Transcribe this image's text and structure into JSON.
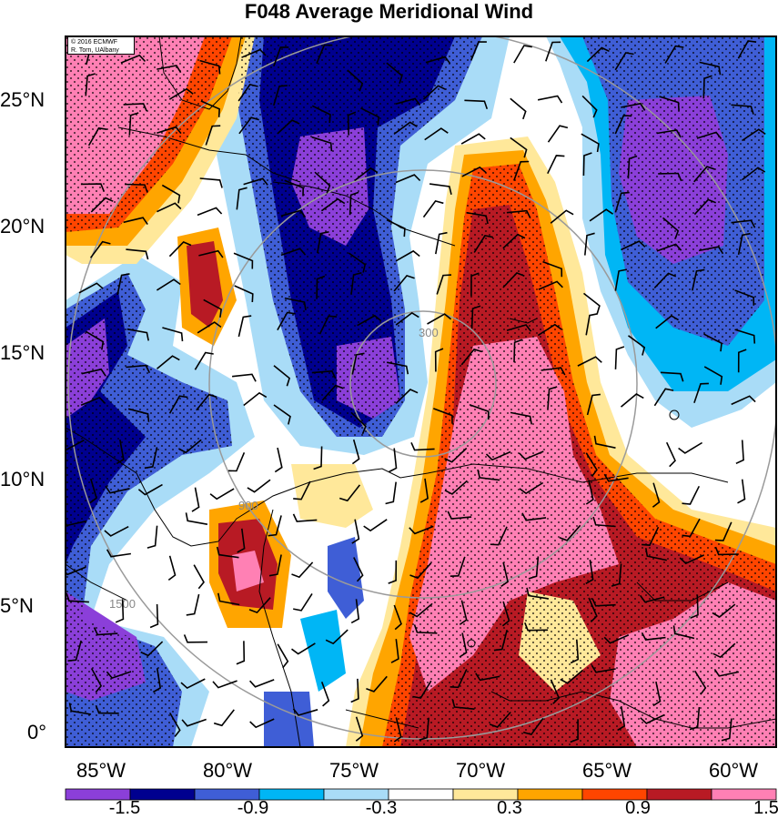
{
  "title": "F048 Average Meridional Wind",
  "credit": {
    "line1": "© 2016 ECMWF",
    "line2": "R. Torn, UAlbany"
  },
  "axes": {
    "lat_labels": [
      "25°N",
      "20°N",
      "15°N",
      "10°N",
      "5°N",
      "0°"
    ],
    "lon_labels": [
      "85°W",
      "80°W",
      "75°W",
      "70°W",
      "65°W",
      "60°W"
    ]
  },
  "range_rings": {
    "labels": [
      "300",
      "900",
      "1500"
    ],
    "color": "#9a9a9a"
  },
  "colorbar": {
    "labels": [
      "-1.5",
      "-0.9",
      "-0.3",
      "0.3",
      "0.9",
      "1.5"
    ],
    "colors": [
      "#8b3fd9",
      "#00008f",
      "#3f5ed6",
      "#00b6f5",
      "#a9dcf7",
      "#ffffff",
      "#ffe89a",
      "#ffa500",
      "#ff4500",
      "#b81a24",
      "#ff80b4"
    ]
  },
  "palette": {
    "deep_purple": "#8b3fd9",
    "navy": "#00008f",
    "royal_blue": "#3f5ed6",
    "sky_blue": "#00b6f5",
    "pale_blue": "#a9dcf7",
    "white": "#ffffff",
    "pale_yellow": "#ffe89a",
    "orange": "#ffa500",
    "orange_red": "#ff4500",
    "dark_red": "#b81a24",
    "pink": "#ff80b4"
  }
}
